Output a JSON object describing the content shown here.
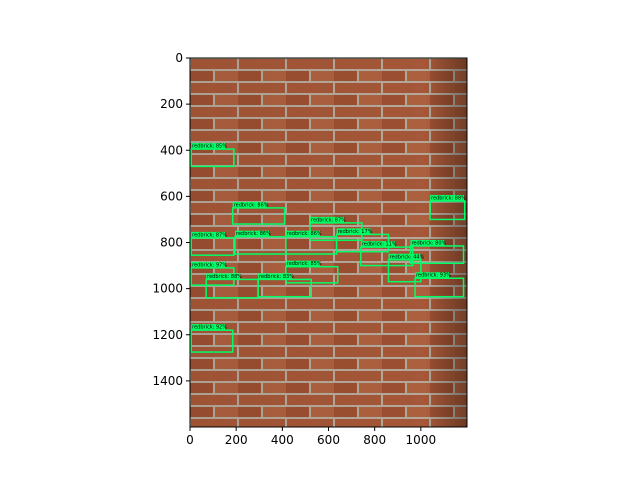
{
  "image": {
    "description_tag": "brick-wall-photo",
    "width": 1200,
    "height": 1600
  },
  "axes": {
    "xticks": [
      0,
      200,
      400,
      600,
      800,
      1000
    ],
    "yticks": [
      0,
      200,
      400,
      600,
      800,
      1000,
      1200,
      1400
    ],
    "xlim": [
      0,
      1200
    ],
    "ylim": [
      1600,
      0
    ],
    "grid": false
  },
  "colors": {
    "box": "#00ff66",
    "label_bg": "#00ff66",
    "mortar": "#b8b0a4",
    "brick": "#a85a3c"
  },
  "detections": [
    {
      "label": "redbrick: 85%",
      "x": 5,
      "y": 395,
      "w": 185,
      "h": 75
    },
    {
      "label": "redbrick: 86%",
      "x": 185,
      "y": 650,
      "w": 225,
      "h": 70
    },
    {
      "label": "redbrick: 87%",
      "x": 520,
      "y": 715,
      "w": 225,
      "h": 75
    },
    {
      "label": "redbrick: 88%",
      "x": 1040,
      "y": 620,
      "w": 150,
      "h": 80
    },
    {
      "label": "redbrick: 87%",
      "x": 5,
      "y": 780,
      "w": 185,
      "h": 75
    },
    {
      "label": "redbrick: 86%",
      "x": 195,
      "y": 775,
      "w": 220,
      "h": 75
    },
    {
      "label": "redbrick: 86%",
      "x": 415,
      "y": 775,
      "w": 220,
      "h": 75
    },
    {
      "label": "redbrick: 17%",
      "x": 635,
      "y": 765,
      "w": 225,
      "h": 75
    },
    {
      "label": "redbrick: 11%",
      "x": 740,
      "y": 820,
      "w": 225,
      "h": 80
    },
    {
      "label": "redbrick: 80%",
      "x": 955,
      "y": 815,
      "w": 230,
      "h": 75
    },
    {
      "label": "redbrick: 44%",
      "x": 860,
      "y": 875,
      "w": 140,
      "h": 95
    },
    {
      "label": "redbrick: 85%",
      "x": 415,
      "y": 905,
      "w": 225,
      "h": 70
    },
    {
      "label": "redbrick: 97%",
      "x": 5,
      "y": 910,
      "w": 185,
      "h": 75
    },
    {
      "label": "redbrick: 93%",
      "x": 975,
      "y": 955,
      "w": 210,
      "h": 80
    },
    {
      "label": "redbrick: 88%",
      "x": 70,
      "y": 960,
      "w": 225,
      "h": 80
    },
    {
      "label": "redbrick: 83%",
      "x": 295,
      "y": 960,
      "w": 230,
      "h": 75
    },
    {
      "label": "redbrick: 92%",
      "x": 5,
      "y": 1180,
      "w": 180,
      "h": 95
    }
  ]
}
